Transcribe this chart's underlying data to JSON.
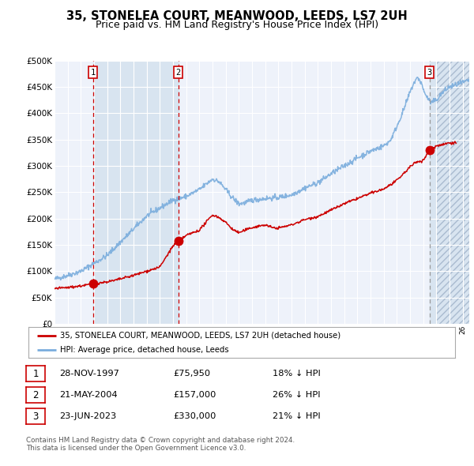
{
  "title": "35, STONELEA COURT, MEANWOOD, LEEDS, LS7 2UH",
  "subtitle": "Price paid vs. HM Land Registry's House Price Index (HPI)",
  "legend_label_red": "35, STONELEA COURT, MEANWOOD, LEEDS, LS7 2UH (detached house)",
  "legend_label_blue": "HPI: Average price, detached house, Leeds",
  "footnote1": "Contains HM Land Registry data © Crown copyright and database right 2024.",
  "footnote2": "This data is licensed under the Open Government Licence v3.0.",
  "transactions": [
    {
      "num": 1,
      "date": "28-NOV-1997",
      "price": 75950,
      "pct": "18%",
      "dir": "↓"
    },
    {
      "num": 2,
      "date": "21-MAY-2004",
      "price": 157000,
      "pct": "26%",
      "dir": "↓"
    },
    {
      "num": 3,
      "date": "23-JUN-2023",
      "price": 330000,
      "pct": "21%",
      "dir": "↓"
    }
  ],
  "transaction_years": [
    1997.91,
    2004.39,
    2023.48
  ],
  "transaction_prices": [
    75950,
    157000,
    330000
  ],
  "vline1_x": 1997.91,
  "vline2_x": 2004.39,
  "vline3_x": 2023.48,
  "shade1_start": 1997.91,
  "shade1_end": 2004.39,
  "shade2_start": 2023.48,
  "hatch_start": 2024.0,
  "ylim": [
    0,
    500000
  ],
  "xlim_start": 1995.0,
  "xlim_end": 2026.5,
  "yticks": [
    0,
    50000,
    100000,
    150000,
    200000,
    250000,
    300000,
    350000,
    400000,
    450000,
    500000
  ],
  "bg_color": "#ffffff",
  "plot_bg_color": "#eef2fa",
  "grid_color": "#ffffff",
  "shade_color": "#d8e4f0",
  "red_line_color": "#cc0000",
  "blue_line_color": "#7aaddd",
  "vline_red_color": "#cc0000",
  "vline3_color": "#999999",
  "marker_color": "#cc0000",
  "title_fontsize": 10.5,
  "subtitle_fontsize": 9
}
